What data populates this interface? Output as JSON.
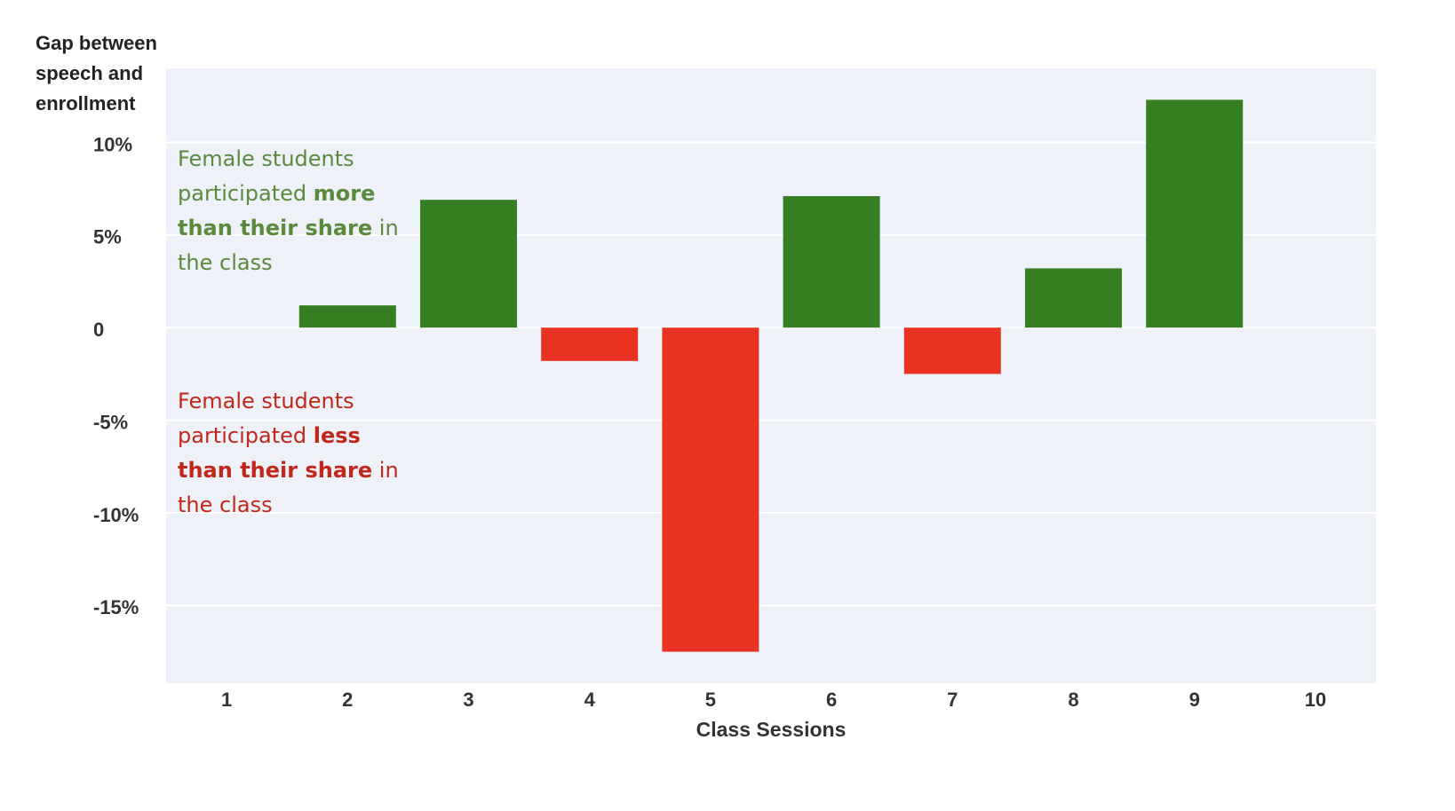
{
  "chart_data": {
    "type": "bar",
    "y_axis_label": "Gap between speech and enrollment",
    "x_axis_label": "Class Sessions",
    "categories": [
      "1",
      "2",
      "3",
      "4",
      "5",
      "6",
      "7",
      "8",
      "9",
      "10"
    ],
    "values": [
      0,
      1.2,
      6.9,
      -1.8,
      -17.5,
      7.1,
      -2.5,
      3.2,
      12.3,
      0
    ],
    "positive_color": "#367e22",
    "negative_color": "#e83323",
    "ylim": [
      -19.2,
      14
    ],
    "yticks": [
      {
        "value": -15,
        "label": "-15%"
      },
      {
        "value": -10,
        "label": "-10%"
      },
      {
        "value": -5,
        "label": "-5%"
      },
      0,
      {
        "value": 5,
        "label": "5%"
      },
      {
        "value": 10,
        "label": "10%"
      }
    ],
    "grid": true,
    "annotations": [
      {
        "color": "#5a8a3c",
        "parts": [
          {
            "text": "Female students participated ",
            "bold": false
          },
          {
            "text": "more than their share",
            "bold": true
          },
          {
            "text": " in the class",
            "bold": false
          }
        ]
      },
      {
        "color": "#c0281c",
        "parts": [
          {
            "text": "Female students participated ",
            "bold": false
          },
          {
            "text": "less than their share",
            "bold": true
          },
          {
            "text": " in the class",
            "bold": false
          }
        ]
      }
    ]
  }
}
